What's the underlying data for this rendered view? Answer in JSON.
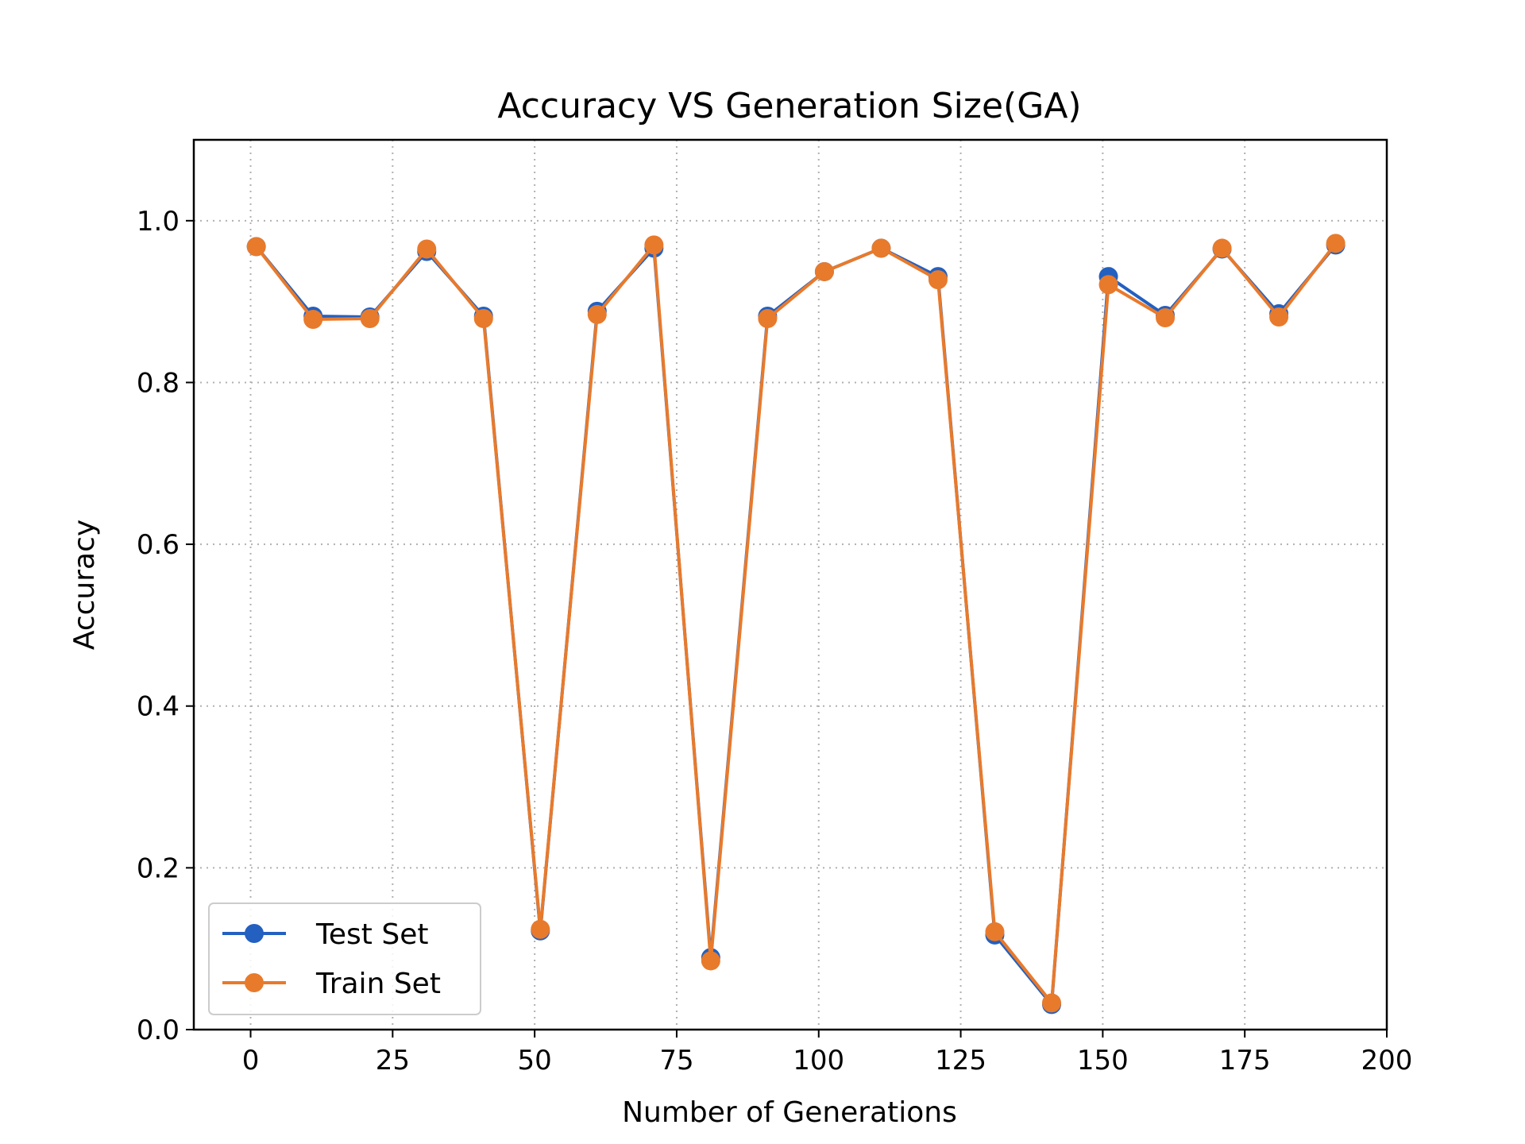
{
  "chart_data": {
    "type": "line",
    "title": "Accuracy VS Generation Size(GA)",
    "xlabel": "Number of Generations",
    "ylabel": "Accuracy",
    "xlim": [
      -10,
      200
    ],
    "ylim": [
      0,
      1.1
    ],
    "xticks": [
      0,
      25,
      50,
      75,
      100,
      125,
      150,
      175,
      200
    ],
    "yticks": [
      0.0,
      0.2,
      0.4,
      0.6,
      0.8,
      1.0
    ],
    "xtick_labels": [
      "0",
      "25",
      "50",
      "75",
      "100",
      "125",
      "150",
      "175",
      "200"
    ],
    "ytick_labels": [
      "0.0",
      "0.2",
      "0.4",
      "0.6",
      "0.8",
      "1.0"
    ],
    "grid": true,
    "legend_position": "lower-left",
    "x": [
      1,
      11,
      21,
      31,
      41,
      51,
      61,
      71,
      81,
      91,
      101,
      111,
      121,
      131,
      141,
      151,
      161,
      171,
      181,
      191
    ],
    "series": [
      {
        "name": "Test Set",
        "color": "#2360c0",
        "values": [
          0.968,
          0.882,
          0.881,
          0.962,
          0.882,
          0.122,
          0.888,
          0.966,
          0.089,
          0.882,
          0.937,
          0.966,
          0.931,
          0.117,
          0.031,
          0.931,
          0.883,
          0.965,
          0.885,
          0.97
        ]
      },
      {
        "name": "Train Set",
        "color": "#e87a2c",
        "values": [
          0.968,
          0.878,
          0.879,
          0.965,
          0.879,
          0.124,
          0.884,
          0.97,
          0.085,
          0.879,
          0.937,
          0.966,
          0.927,
          0.121,
          0.033,
          0.921,
          0.88,
          0.966,
          0.881,
          0.972
        ]
      }
    ]
  }
}
